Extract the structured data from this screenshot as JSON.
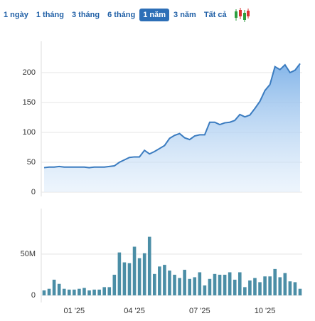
{
  "tabs": [
    "1 ngày",
    "1 tháng",
    "3 tháng",
    "6 tháng",
    "1 năm",
    "3 năm",
    "Tất cả"
  ],
  "active_tab": 4,
  "chart_data": [
    {
      "type": "area",
      "color": "#3b7cc0",
      "values": [
        41,
        42,
        42,
        43,
        42,
        42,
        42,
        42,
        42,
        41,
        42,
        42,
        42,
        43,
        44,
        50,
        54,
        58,
        59,
        59,
        70,
        64,
        68,
        73,
        78,
        90,
        95,
        98,
        91,
        88,
        94,
        96,
        96,
        117,
        117,
        113,
        116,
        117,
        120,
        130,
        126,
        129,
        140,
        152,
        170,
        180,
        210,
        205,
        213,
        200,
        204,
        215
      ],
      "ylim": [
        0,
        250
      ],
      "yticks": [
        0,
        50,
        100,
        150,
        200
      ],
      "grid": true
    },
    {
      "type": "bar",
      "color": "#4b8ea6",
      "categories": [
        null,
        null,
        null,
        null,
        null,
        null,
        "01 '25",
        null,
        null,
        null,
        null,
        null,
        null,
        null,
        null,
        null,
        null,
        null,
        "04 '25",
        null,
        null,
        null,
        null,
        null,
        null,
        null,
        null,
        null,
        null,
        null,
        null,
        "07 '25",
        null,
        null,
        null,
        null,
        null,
        null,
        null,
        null,
        null,
        null,
        null,
        null,
        "10 '25",
        null,
        null,
        null,
        null,
        null,
        null,
        null
      ],
      "values": [
        6000000,
        8000000,
        19000000,
        14000000,
        8000000,
        7000000,
        7000000,
        8000000,
        9000000,
        6000000,
        7000000,
        7000000,
        10000000,
        10000000,
        25000000,
        52000000,
        40000000,
        39000000,
        59000000,
        45000000,
        51000000,
        71000000,
        26000000,
        35000000,
        37000000,
        30000000,
        25000000,
        21000000,
        31000000,
        20000000,
        22000000,
        28000000,
        12000000,
        20000000,
        26000000,
        25000000,
        25000000,
        28000000,
        19000000,
        28000000,
        10000000,
        18000000,
        21000000,
        16000000,
        23000000,
        23000000,
        32000000,
        22000000,
        27000000,
        17000000,
        16000000,
        8000000
      ],
      "ylim": [
        0,
        100000000
      ],
      "yticks": [
        0,
        {
          "value": 50000000,
          "label": "50M"
        }
      ],
      "grid": true
    }
  ]
}
